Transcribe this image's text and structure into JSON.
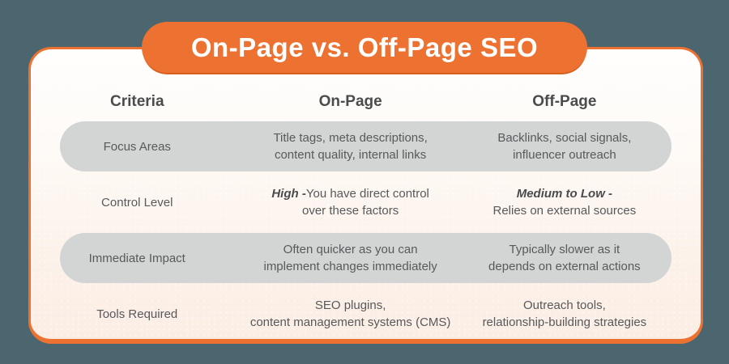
{
  "title": "On-Page vs. Off-Page SEO",
  "colors": {
    "background": "#4C6670",
    "accent_orange": "#ED7231",
    "accent_orange_dark": "#D8601E",
    "row_highlight_gray": "#D3D5D5",
    "card_top": "#FFFEFD",
    "card_bottom": "#FBEDE4",
    "heading_text": "#4A4B4D",
    "body_text": "#58595B"
  },
  "table": {
    "headers": [
      "Criteria",
      "On-Page",
      "Off-Page"
    ],
    "rows": [
      {
        "criteria": "Focus Areas",
        "on_page": {
          "emphasis": "",
          "line1": "Title tags, meta descriptions,",
          "line2": "content quality, internal links"
        },
        "off_page": {
          "emphasis": "",
          "line1": "Backlinks, social signals,",
          "line2": "influencer outreach"
        }
      },
      {
        "criteria": "Control Level",
        "on_page": {
          "emphasis": "High -",
          "line1": "You have direct control",
          "line2": "over these factors"
        },
        "off_page": {
          "emphasis": "Medium to Low -",
          "line1": "",
          "line2": "Relies on external sources"
        }
      },
      {
        "criteria": "Immediate Impact",
        "on_page": {
          "emphasis": "",
          "line1": "Often quicker as you can",
          "line2": "implement changes immediately"
        },
        "off_page": {
          "emphasis": "",
          "line1": "Typically slower as it",
          "line2": "depends on external actions"
        }
      },
      {
        "criteria": "Tools Required",
        "on_page": {
          "emphasis": "",
          "line1": "SEO plugins,",
          "line2": "content management systems (CMS)"
        },
        "off_page": {
          "emphasis": "",
          "line1": "Outreach tools,",
          "line2": "relationship-building strategies"
        }
      }
    ]
  }
}
